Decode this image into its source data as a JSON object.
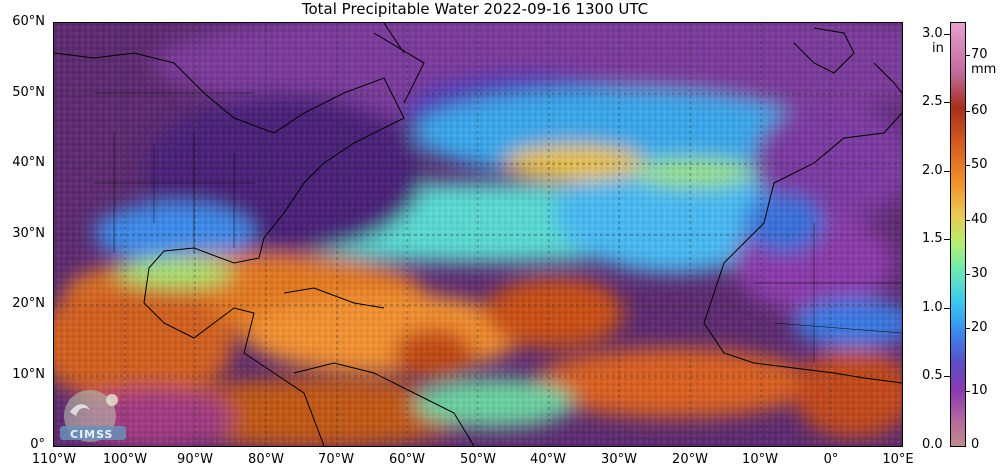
{
  "title": "Total Precipitable Water  2022-09-16 1300 UTC",
  "map": {
    "lat_labels": [
      "60°N",
      "50°N",
      "40°N",
      "30°N",
      "20°N",
      "10°N",
      "0°"
    ],
    "lon_labels": [
      "110°W",
      "100°W",
      "90°W",
      "80°W",
      "70°W",
      "60°W",
      "50°W",
      "40°W",
      "30°W",
      "20°W",
      "10°W",
      "0°",
      "10°E"
    ],
    "lat_range": [
      0,
      60
    ],
    "lon_range": [
      -110,
      10
    ],
    "grid": "dashed lines every 10°",
    "logo_text": "CIMSS"
  },
  "colorbar": {
    "inch_unit": "in",
    "mm_unit": "mm",
    "inch_ticks": [
      "3.0",
      "2.5",
      "2.0",
      "1.5",
      "1.0",
      "0.5",
      "0.0"
    ],
    "mm_ticks": [
      "70",
      "60",
      "50",
      "40",
      "30",
      "20",
      "10",
      "0"
    ],
    "inch_range": [
      0,
      3.1
    ],
    "mm_range": [
      0,
      78
    ],
    "colors": [
      "#c08a8a",
      "#8a3ab0",
      "#3a8af0",
      "#38c8f0",
      "#b6ee70",
      "#f08c28",
      "#a82e1a",
      "#e8a0d0"
    ]
  }
}
